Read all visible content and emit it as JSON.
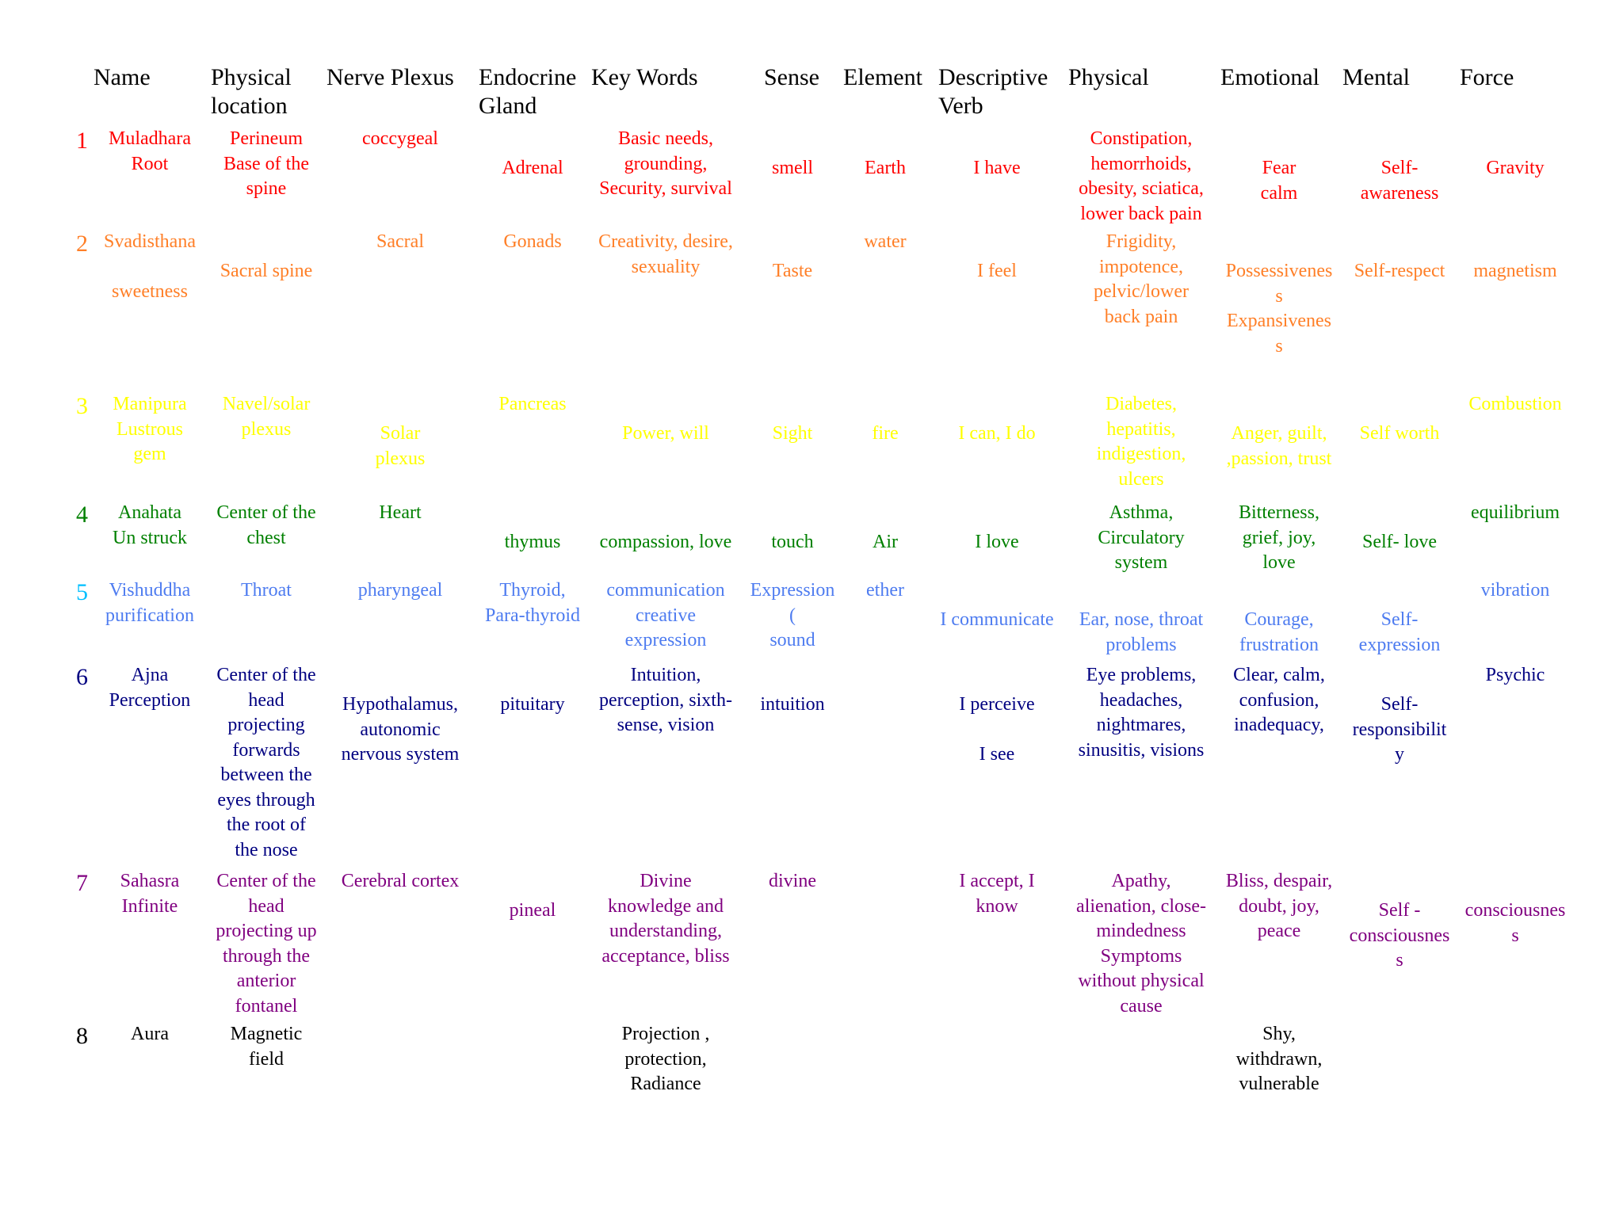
{
  "headers": [
    "Name",
    "Physical\nlocation",
    "Nerve Plexus",
    "Endocrine\nGland",
    "Key Words",
    "Sense",
    "Element",
    "Descriptive\nVerb",
    "Physical",
    "Emotional",
    "Mental",
    "Force"
  ],
  "rows": [
    {
      "num": "1",
      "color": "#ff0000",
      "cells": [
        "Muladhara\nRoot",
        "Perineum\nBase of the\nspine",
        "coccygeal",
        "Adrenal",
        "Basic needs,\ngrounding,\nSecurity, survival",
        "smell",
        "Earth",
        "I have",
        "Constipation,\nhemorrhoids,\nobesity, sciatica,\nlower back pain",
        "Fear\ncalm",
        "Self-\nawareness",
        "Gravity"
      ]
    },
    {
      "num": "2",
      "color": "#ff7f27",
      "cells": [
        "Svadisthana\n\nsweetness",
        "Sacral spine",
        "Sacral",
        "Gonads",
        "Creativity, desire,\nsexuality",
        "Taste",
        "water",
        "I feel",
        "Frigidity,\nimpotence,\npelvic/lower\nback pain",
        "Possessivenes\ns\nExpansivenes\ns",
        "Self-respect",
        "magnetism"
      ]
    },
    {
      "num": "3",
      "color": "#ffff00",
      "cells": [
        "Manipura\nLustrous\ngem",
        "Navel/solar\nplexus",
        "Solar\nplexus",
        "Pancreas",
        "Power, will",
        "Sight",
        "fire",
        "I can, I do",
        "Diabetes,\nhepatitis,\nindigestion,\nulcers",
        "Anger, guilt,\n,passion, trust",
        "Self worth",
        "Combustion"
      ]
    },
    {
      "num": "4",
      "color": "#008000",
      "cells": [
        "Anahata\nUn struck",
        "Center of the\nchest",
        "Heart",
        "thymus",
        "compassion, love",
        "touch",
        "Air",
        "I love",
        "Asthma,\nCirculatory\nsystem",
        "Bitterness,\ngrief, joy,\nlove",
        "Self- love",
        "equilibrium"
      ]
    },
    {
      "num": "5",
      "color": "#4e7cf0",
      "numColor": "#00bfff",
      "cells": [
        "Vishuddha\npurification",
        "Throat",
        "pharyngeal",
        "Thyroid,\nPara-thyroid",
        "communication\ncreative\nexpression",
        "Expression\n(\nsound",
        "ether",
        "I communicate",
        "Ear, nose, throat\nproblems",
        "Courage,\nfrustration",
        "Self-\nexpression",
        "vibration"
      ]
    },
    {
      "num": "6",
      "color": "#000080",
      "cells": [
        "Ajna\nPerception",
        "Center of the\nhead\nprojecting\nforwards\nbetween the\neyes through\nthe root of\nthe nose",
        "Hypothalamus,\nautonomic\nnervous system",
        "pituitary",
        "Intuition,\nperception, sixth-\nsense, vision",
        "intuition",
        "",
        "I perceive\n\nI see",
        "Eye problems,\nheadaches,\nnightmares,\nsinusitis, visions",
        "Clear, calm,\nconfusion,\ninadequacy,",
        "Self-\nresponsibilit\ny",
        "Psychic"
      ]
    },
    {
      "num": "7",
      "color": "#800080",
      "cells": [
        "Sahasra\nInfinite",
        "Center of the\nhead\nprojecting up\nthrough the\nanterior\nfontanel",
        "Cerebral cortex",
        "pineal",
        "Divine\nknowledge and\nunderstanding,\nacceptance, bliss",
        "divine",
        "",
        "I accept, I\nknow",
        "Apathy,\nalienation, close-\nmindedness\nSymptoms\nwithout physical\ncause",
        "Bliss, despair,\ndoubt, joy,\npeace",
        "Self -\nconsciousnes\ns",
        "consciousnes\ns"
      ]
    },
    {
      "num": "8",
      "color": "#000000",
      "cells": [
        "Aura",
        "Magnetic\nfield",
        "",
        "",
        "Projection ,\nprotection,\nRadiance",
        "",
        "",
        "",
        "",
        "Shy,\nwithdrawn,\nvulnerable",
        "",
        ""
      ]
    }
  ]
}
